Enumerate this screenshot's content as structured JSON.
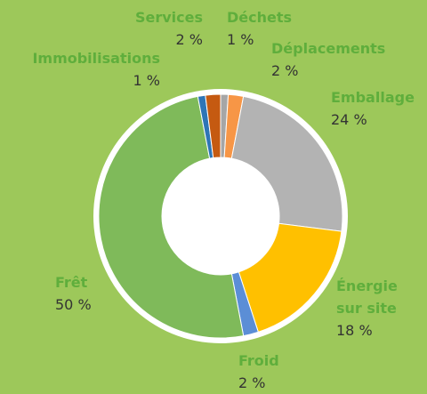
{
  "chart_data": {
    "type": "donut",
    "categories": [
      "Déchets",
      "Déplacements",
      "Emballage",
      "Énergie sur site",
      "Froid",
      "Frêt",
      "Immobilisations",
      "Services"
    ],
    "values": [
      1,
      2,
      24,
      18,
      2,
      50,
      1,
      2
    ],
    "value_labels": [
      "1 %",
      "2 %",
      "24 %",
      "18 %",
      "2 %",
      "50 %",
      "1 %",
      "2 %"
    ],
    "colors": [
      "#a6a6a6",
      "#f79646",
      "#b3b3b3",
      "#ffc000",
      "#5b8ed6",
      "#7fba5a",
      "#2e75b6",
      "#c55a11"
    ]
  }
}
